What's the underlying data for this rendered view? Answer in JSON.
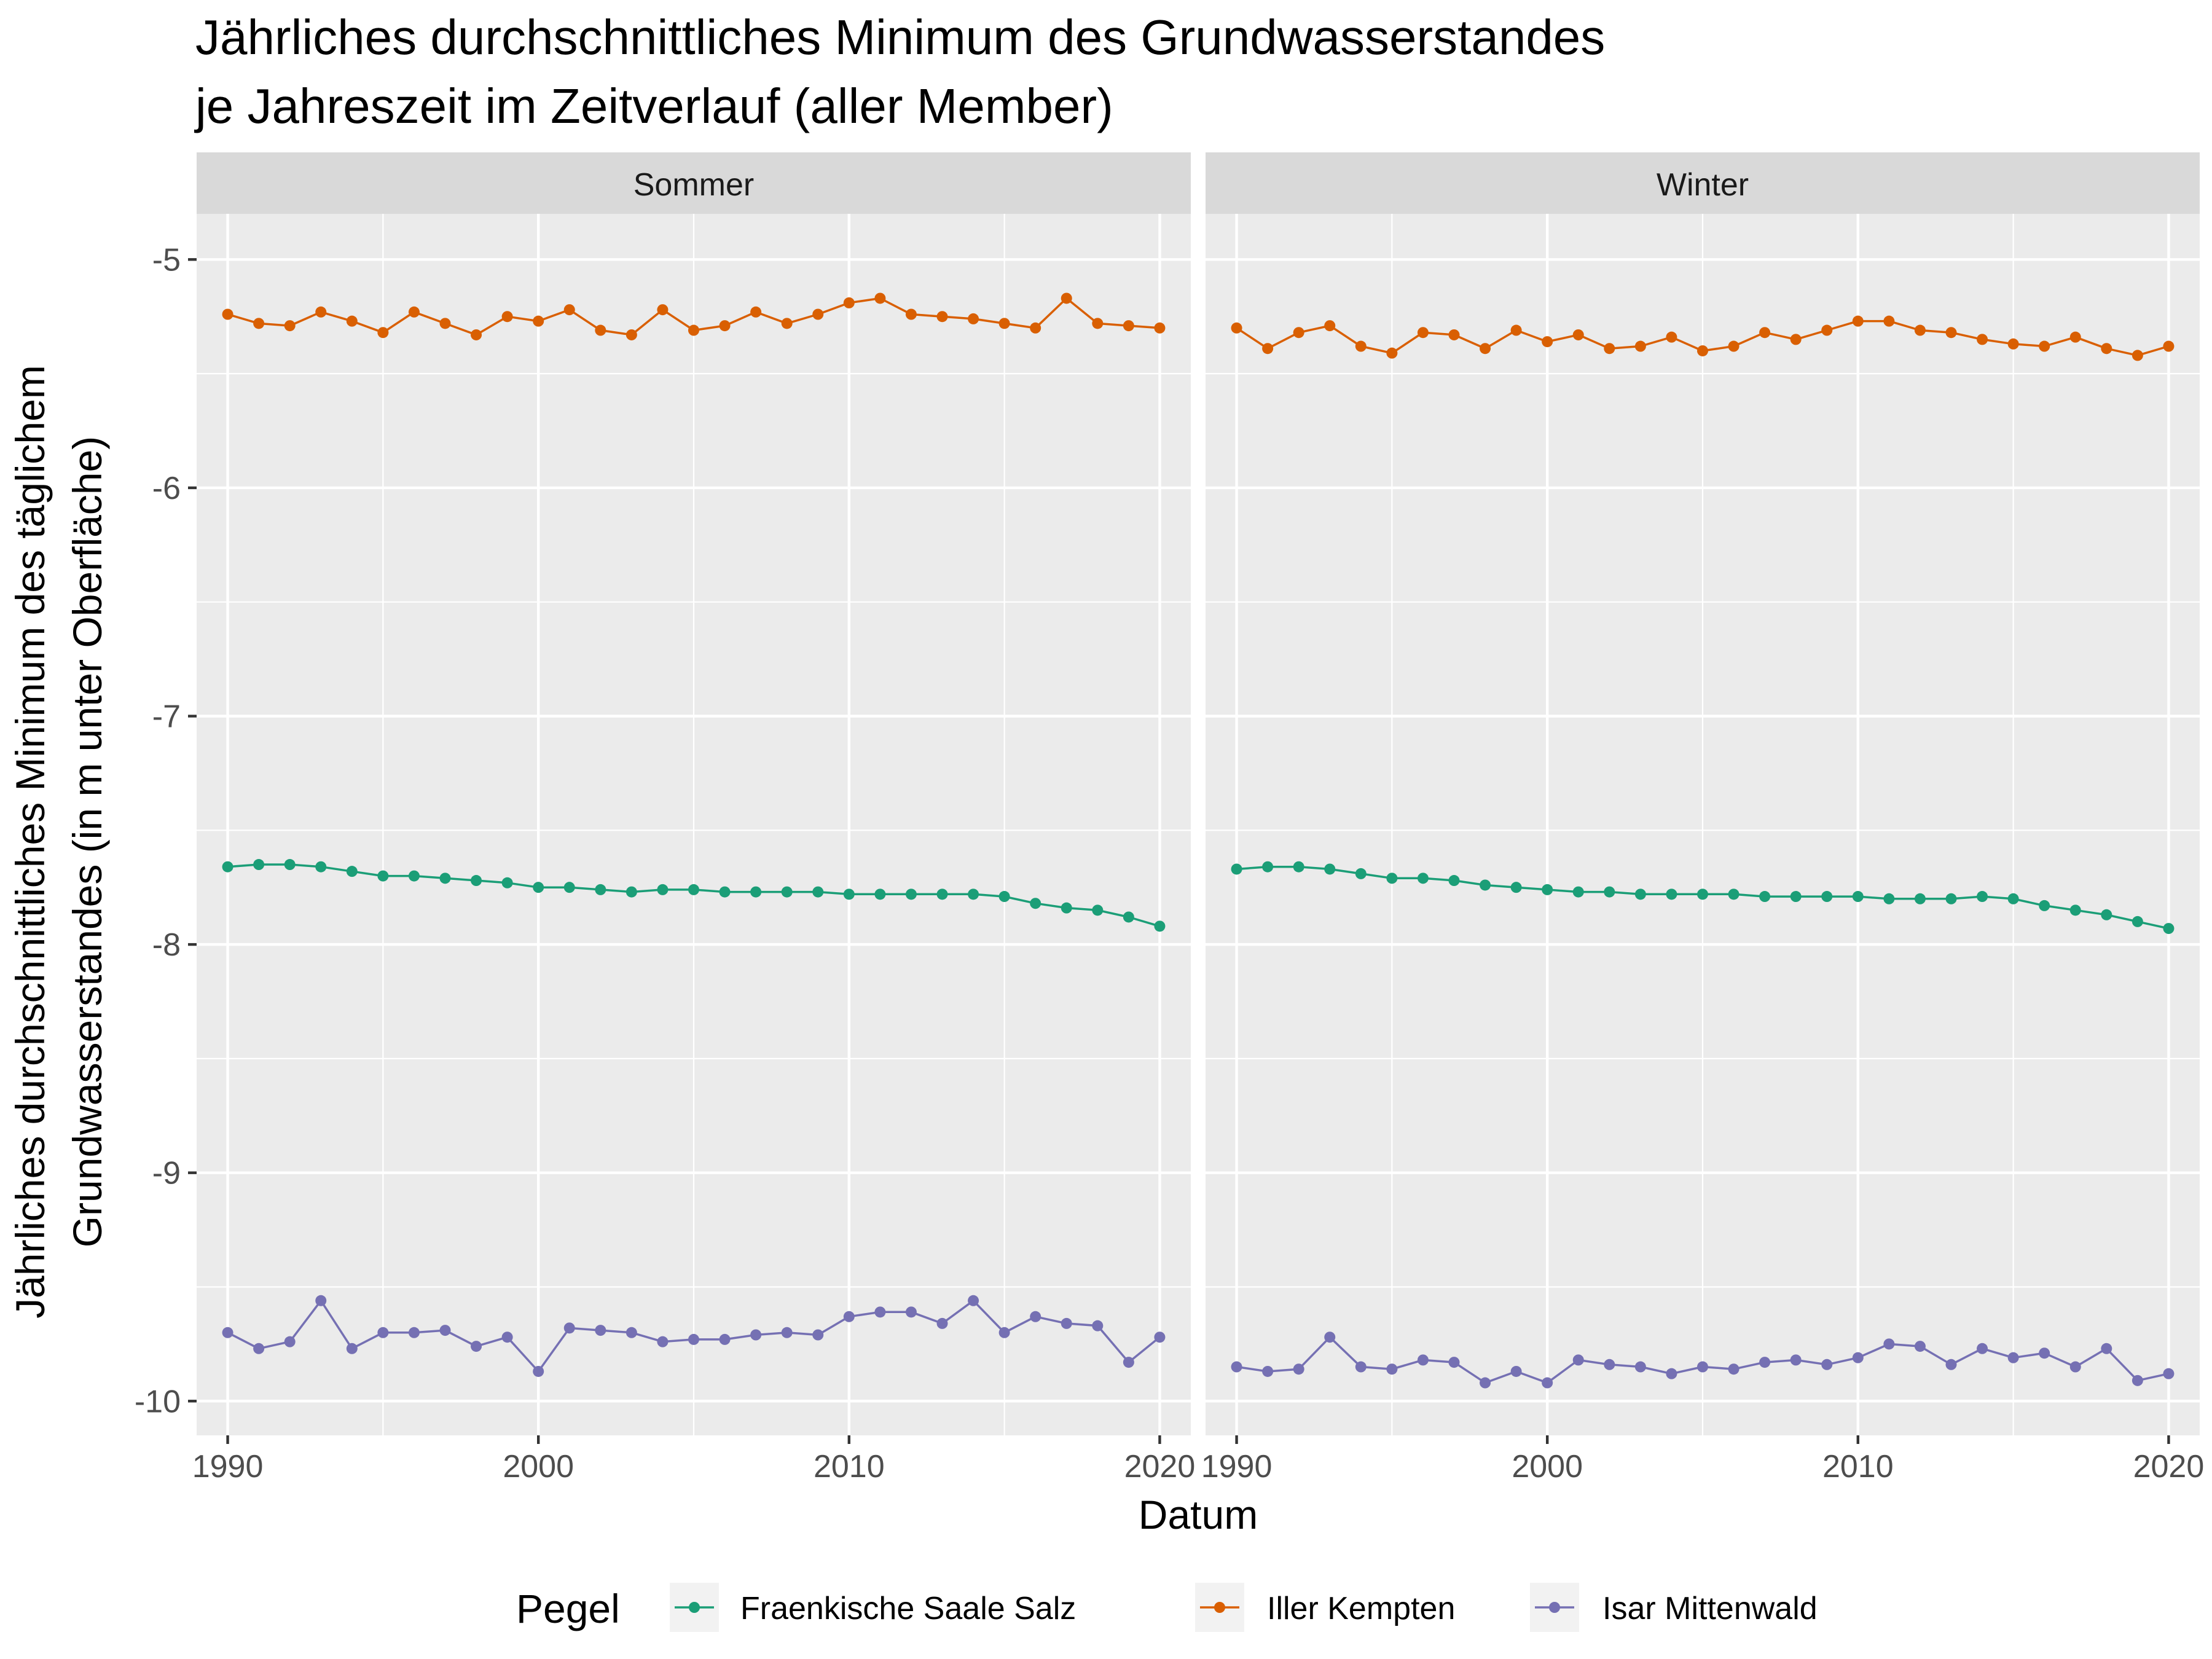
{
  "chart_data": {
    "type": "line",
    "title_lines": [
      "Jährliches durchschnittliches Minimum des Grundwasserstandes",
      "je Jahreszeit im Zeitverlauf (aller Member)"
    ],
    "xlabel": "Datum",
    "ylabel_lines": [
      "Jährliches durchschnittliches Minimum des täglichem",
      "Grundwasserstandes (in m unter Oberfläche)"
    ],
    "x_ticks": [
      "1990",
      "2000",
      "2010",
      "2020"
    ],
    "y_ticks": [
      "-5",
      "-6",
      "-7",
      "-8",
      "-9",
      "-10"
    ],
    "x_range": [
      1989,
      2021
    ],
    "y_range": [
      -10.15,
      -4.8
    ],
    "grid": true,
    "legend": {
      "title": "Pegel",
      "position": "bottom",
      "entries": [
        "Fraenkische Saale Salz",
        "Iller Kempten",
        "Isar Mittenwald"
      ]
    },
    "series_colors": [
      "#1b9e77",
      "#d95f02",
      "#7570b3"
    ],
    "x": [
      1990,
      1991,
      1992,
      1993,
      1994,
      1995,
      1996,
      1997,
      1998,
      1999,
      2000,
      2001,
      2002,
      2003,
      2004,
      2005,
      2006,
      2007,
      2008,
      2009,
      2010,
      2011,
      2012,
      2013,
      2014,
      2015,
      2016,
      2017,
      2018,
      2019,
      2020
    ],
    "panels": [
      {
        "name": "Sommer",
        "series": [
          {
            "name": "Fraenkische Saale Salz",
            "values": [
              -7.66,
              -7.65,
              -7.65,
              -7.66,
              -7.68,
              -7.7,
              -7.7,
              -7.71,
              -7.72,
              -7.73,
              -7.75,
              -7.75,
              -7.76,
              -7.77,
              -7.76,
              -7.76,
              -7.77,
              -7.77,
              -7.77,
              -7.77,
              -7.78,
              -7.78,
              -7.78,
              -7.78,
              -7.78,
              -7.79,
              -7.82,
              -7.84,
              -7.85,
              -7.88,
              -7.92
            ]
          },
          {
            "name": "Iller Kempten",
            "values": [
              -5.24,
              -5.28,
              -5.29,
              -5.23,
              -5.27,
              -5.32,
              -5.23,
              -5.28,
              -5.33,
              -5.25,
              -5.27,
              -5.22,
              -5.31,
              -5.33,
              -5.22,
              -5.31,
              -5.29,
              -5.23,
              -5.28,
              -5.24,
              -5.19,
              -5.17,
              -5.24,
              -5.25,
              -5.26,
              -5.28,
              -5.3,
              -5.17,
              -5.28,
              -5.29,
              -5.3
            ]
          },
          {
            "name": "Isar Mittenwald",
            "values": [
              -9.7,
              -9.77,
              -9.74,
              -9.56,
              -9.77,
              -9.7,
              -9.7,
              -9.69,
              -9.76,
              -9.72,
              -9.87,
              -9.68,
              -9.69,
              -9.7,
              -9.74,
              -9.73,
              -9.73,
              -9.71,
              -9.7,
              -9.71,
              -9.63,
              -9.61,
              -9.61,
              -9.66,
              -9.56,
              -9.7,
              -9.63,
              -9.66,
              -9.67,
              -9.83,
              -9.72
            ]
          }
        ]
      },
      {
        "name": "Winter",
        "series": [
          {
            "name": "Fraenkische Saale Salz",
            "values": [
              -7.67,
              -7.66,
              -7.66,
              -7.67,
              -7.69,
              -7.71,
              -7.71,
              -7.72,
              -7.74,
              -7.75,
              -7.76,
              -7.77,
              -7.77,
              -7.78,
              -7.78,
              -7.78,
              -7.78,
              -7.79,
              -7.79,
              -7.79,
              -7.79,
              -7.8,
              -7.8,
              -7.8,
              -7.79,
              -7.8,
              -7.83,
              -7.85,
              -7.87,
              -7.9,
              -7.93
            ]
          },
          {
            "name": "Iller Kempten",
            "values": [
              -5.3,
              -5.39,
              -5.32,
              -5.29,
              -5.38,
              -5.41,
              -5.32,
              -5.33,
              -5.39,
              -5.31,
              -5.36,
              -5.33,
              -5.39,
              -5.38,
              -5.34,
              -5.4,
              -5.38,
              -5.32,
              -5.35,
              -5.31,
              -5.27,
              -5.27,
              -5.31,
              -5.32,
              -5.35,
              -5.37,
              -5.38,
              -5.34,
              -5.39,
              -5.42,
              -5.38
            ]
          },
          {
            "name": "Isar Mittenwald",
            "values": [
              -9.85,
              -9.87,
              -9.86,
              -9.72,
              -9.85,
              -9.86,
              -9.82,
              -9.83,
              -9.92,
              -9.87,
              -9.92,
              -9.82,
              -9.84,
              -9.85,
              -9.88,
              -9.85,
              -9.86,
              -9.83,
              -9.82,
              -9.84,
              -9.81,
              -9.75,
              -9.76,
              -9.84,
              -9.77,
              -9.81,
              -9.79,
              -9.85,
              -9.77,
              -9.91,
              -9.88
            ]
          }
        ]
      }
    ]
  }
}
